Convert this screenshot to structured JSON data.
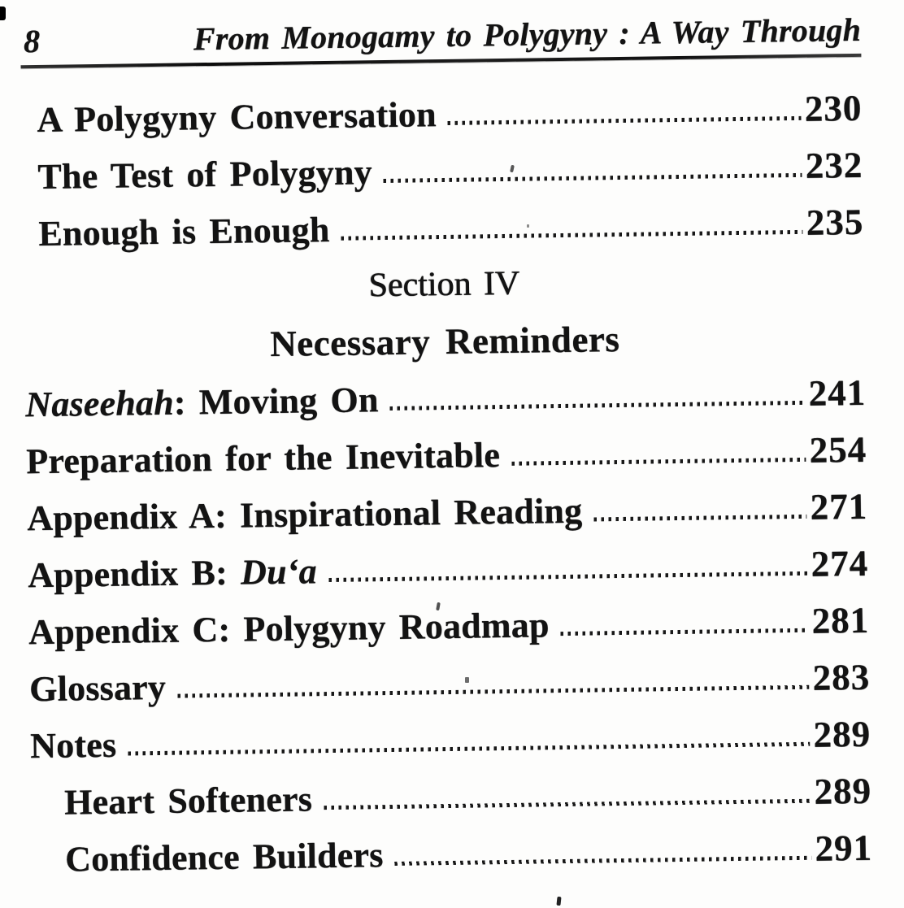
{
  "page": {
    "number": "8",
    "running_header": "From Monogamy to Polygyny : A Way Through"
  },
  "toc": {
    "entries_top": [
      {
        "parts": [
          {
            "text": "A Polygyny Conversation",
            "italic": false
          }
        ],
        "page": "230",
        "indent": "mid"
      },
      {
        "parts": [
          {
            "text": "The Test of Polygyny",
            "italic": false
          }
        ],
        "page": "232",
        "indent": "mid"
      },
      {
        "parts": [
          {
            "text": "Enough is Enough",
            "italic": false
          }
        ],
        "page": "235",
        "indent": "mid"
      }
    ],
    "section": {
      "kicker": "Section IV",
      "title": "Necessary Reminders"
    },
    "entries_bottom": [
      {
        "parts": [
          {
            "text": "Naseehah",
            "italic": true
          },
          {
            "text": ": Moving On",
            "italic": false
          }
        ],
        "page": "241",
        "indent": ""
      },
      {
        "parts": [
          {
            "text": "Preparation for the Inevitable",
            "italic": false
          }
        ],
        "page": "254",
        "indent": ""
      },
      {
        "parts": [
          {
            "text": "Appendix A: Inspirational Reading",
            "italic": false
          }
        ],
        "page": "271",
        "indent": ""
      },
      {
        "parts": [
          {
            "text": "Appendix B: ",
            "italic": false
          },
          {
            "text": "Du‘a",
            "italic": true
          }
        ],
        "page": "274",
        "indent": ""
      },
      {
        "parts": [
          {
            "text": "Appendix C: Polygyny Roadmap",
            "italic": false
          }
        ],
        "page": "281",
        "indent": ""
      },
      {
        "parts": [
          {
            "text": "Glossary",
            "italic": false
          }
        ],
        "page": "283",
        "indent": ""
      },
      {
        "parts": [
          {
            "text": "Notes",
            "italic": false
          }
        ],
        "page": "289",
        "indent": ""
      },
      {
        "parts": [
          {
            "text": "Heart Softeners",
            "italic": false
          }
        ],
        "page": "289",
        "indent": "child"
      },
      {
        "parts": [
          {
            "text": "Confidence Builders",
            "italic": false
          }
        ],
        "page": "291",
        "indent": "child"
      }
    ]
  }
}
